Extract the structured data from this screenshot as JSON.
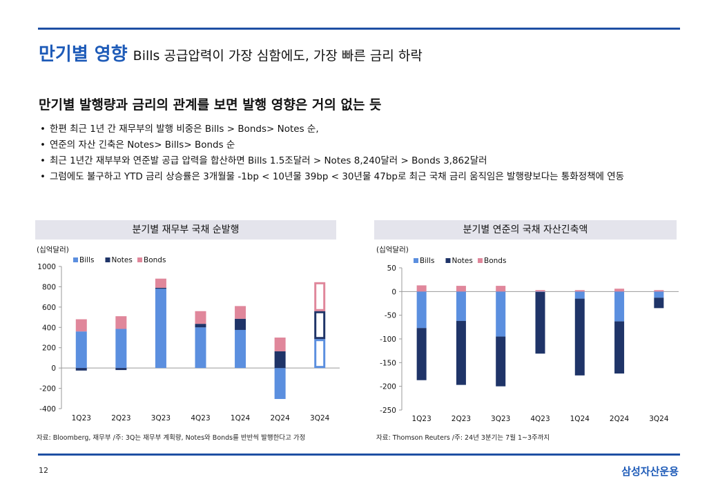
{
  "title": {
    "main": "만기별 영향",
    "sub": "Bills 공급압력이 가장 심함에도, 가장 빠른 금리 하락"
  },
  "subheading": "만기별 발행량과 금리의 관계를 보면 발행 영향은 거의 없는 듯",
  "bullets": [
    "한편 최근 1년 간  재무부의 발행 비중은 Bills > Bonds> Notes 순,",
    "연준의 자산 긴축은 Notes> Bills> Bonds 순",
    "최근 1년간 재부부와 연준발 공급 압력을 합산하면 Bills 1.5조달러 > Notes 8,240달러 > Bonds 3,862달러",
    "그럼에도 불구하고 YTD 금리 상승률은 3개월물 -1bp < 10년물 39bp < 30년물 47bp로 최근 국채 금리 움직임은 발행량보다는 통화정책에 연동"
  ],
  "colors": {
    "bills": "#5b8fdf",
    "notes": "#1f3468",
    "bonds": "#e0879b",
    "accent": "#1e4fa3",
    "header_bg": "#e4e4ec"
  },
  "chart_data": [
    {
      "type": "bar",
      "stacked": true,
      "title": "분기별 재무부 국채 순발행",
      "unit": "(십억달러)",
      "categories": [
        "1Q23",
        "2Q23",
        "3Q23",
        "4Q23",
        "1Q24",
        "2Q24",
        "3Q24"
      ],
      "series": [
        {
          "name": "Bills",
          "values": [
            360,
            385,
            780,
            400,
            375,
            -305,
            285
          ]
        },
        {
          "name": "Notes",
          "values": [
            -25,
            -20,
            10,
            35,
            110,
            165,
            275
          ]
        },
        {
          "name": "Bonds",
          "values": [
            120,
            125,
            90,
            125,
            125,
            135,
            285
          ]
        }
      ],
      "ylim": [
        -400,
        1000
      ],
      "yticks": [
        -400,
        -200,
        0,
        200,
        400,
        600,
        800,
        1000
      ],
      "legend": "top-left",
      "annotation": "3Q24 shown as outlined (planned) bars"
    },
    {
      "type": "bar",
      "stacked": true,
      "title": "분기별 연준의 국채 자산긴축액",
      "unit": "(십억달러)",
      "categories": [
        "1Q23",
        "2Q23",
        "3Q23",
        "4Q23",
        "1Q24",
        "2Q24",
        "3Q24"
      ],
      "series": [
        {
          "name": "Bills",
          "values": [
            -77,
            -62,
            -95,
            -1,
            -15,
            -63,
            -13
          ]
        },
        {
          "name": "Notes",
          "values": [
            -110,
            -135,
            -105,
            -130,
            -162,
            -110,
            -22
          ]
        },
        {
          "name": "Bonds",
          "values": [
            13,
            12,
            12,
            3,
            3,
            6,
            3
          ]
        }
      ],
      "ylim": [
        -250,
        50
      ],
      "yticks": [
        -250,
        -200,
        -150,
        -100,
        -50,
        0,
        50
      ],
      "legend": "top-left"
    }
  ],
  "sources": [
    "자료: Bloomberg, 재무부 /주: 3Q는 재무부 계획량, Notes와 Bonds를 반반씩 발행한다고 가정",
    "자료:  Thomson Reuters /주: 24년 3분기는 7월 1~3주까지"
  ],
  "page_number": "12",
  "logo": "삼성자산운용"
}
